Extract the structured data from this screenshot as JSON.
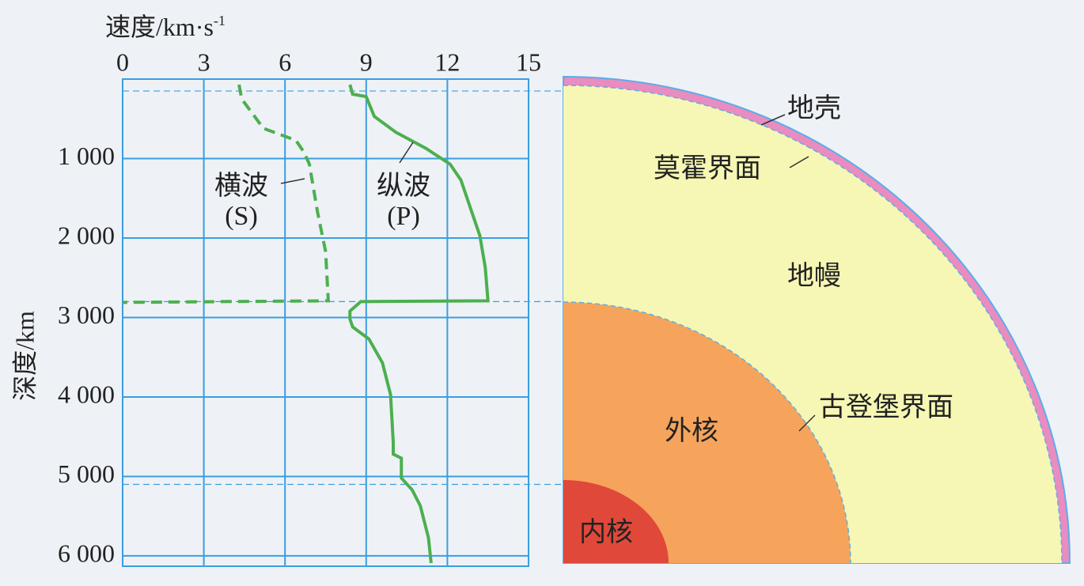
{
  "chart_data": {
    "type": "line",
    "x_label": "速度/km·s",
    "x_label_sup": "-1",
    "y_label": "深度/km",
    "xlim": [
      0,
      15
    ],
    "xticks": [
      0,
      3,
      6,
      9,
      12,
      15
    ],
    "ylim": [
      0,
      6130
    ],
    "yticks": [
      {
        "value": 1000,
        "label": "1 000"
      },
      {
        "value": 2000,
        "label": "2 000"
      },
      {
        "value": 3000,
        "label": "3 000"
      },
      {
        "value": 4000,
        "label": "4 000"
      },
      {
        "value": 5000,
        "label": "5 000"
      },
      {
        "value": 6000,
        "label": "6 000"
      }
    ],
    "y_inverted": true,
    "grid": true,
    "grid_color": "#3a9ee0",
    "boundaries": [
      150,
      2800,
      5100
    ],
    "series": [
      {
        "name": "横波",
        "label": "(S)",
        "color": "#4caf50",
        "dashed": true,
        "x": [
          4.3,
          4.4,
          5.2,
          6.4,
          6.7,
          6.9,
          7.2,
          7.5,
          7.6,
          0
        ],
        "y": [
          70,
          250,
          620,
          770,
          920,
          1070,
          1670,
          2170,
          2790,
          2810
        ]
      },
      {
        "name": "纵波",
        "label": "(P)",
        "color": "#4caf50",
        "dashed": false,
        "x": [
          8.4,
          8.5,
          9.0,
          9.3,
          10.1,
          11.2,
          12.1,
          12.5,
          12.9,
          13.2,
          13.4,
          13.5,
          8.8,
          8.4,
          8.4,
          8.5,
          9.1,
          9.6,
          9.9,
          10.0,
          10.0,
          10.3,
          10.3,
          10.7,
          11.0,
          11.3,
          11.4
        ],
        "y": [
          70,
          190,
          220,
          470,
          670,
          870,
          1070,
          1270,
          1670,
          1970,
          2370,
          2790,
          2800,
          2920,
          3020,
          3120,
          3270,
          3570,
          3970,
          4570,
          4720,
          4770,
          5020,
          5170,
          5370,
          5770,
          6090
        ]
      }
    ]
  },
  "diagram": {
    "labels": {
      "crust": "地壳",
      "moho": "莫霍界面",
      "mantle": "地幔",
      "outer_core": "外核",
      "gutenberg": "古登堡界面",
      "inner_core": "内核"
    }
  }
}
